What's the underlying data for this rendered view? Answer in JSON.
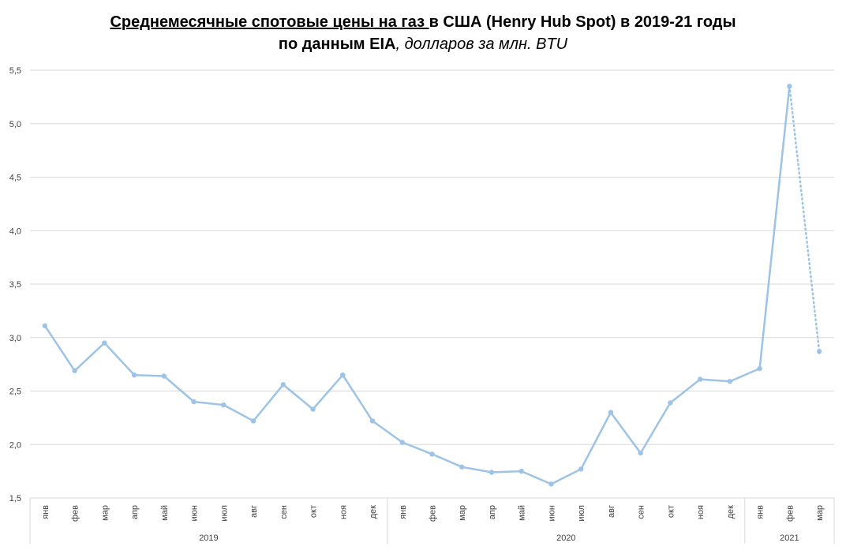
{
  "title": {
    "line1_underlined": "Среднемесячные спотовые цены на газ ",
    "line1_rest": "в США (Henry Hub Spot) в 2019-21 годы",
    "line2_bold": "по данным EIA",
    "line2_italic": ", долларов за млн. BTU"
  },
  "chart_data": {
    "type": "line",
    "title": "Среднемесячные спотовые цены на газ в США (Henry Hub Spot) в 2019-21 годы по данным EIA, долларов за млн. BTU",
    "ylim": [
      1.5,
      5.5
    ],
    "yticks": [
      "1,5",
      "2,0",
      "2,5",
      "3,0",
      "3,5",
      "4,0",
      "4,5",
      "5,0",
      "5,5"
    ],
    "ytick_values": [
      1.5,
      2.0,
      2.5,
      3.0,
      3.5,
      4.0,
      4.5,
      5.0,
      5.5
    ],
    "grid": true,
    "categories": [
      "янв",
      "фев",
      "мар",
      "апр",
      "май",
      "июн",
      "июл",
      "авг",
      "сен",
      "окт",
      "ноя",
      "дек",
      "янв",
      "фев",
      "мар",
      "апр",
      "май",
      "июн",
      "июл",
      "авг",
      "сен",
      "окт",
      "ноя",
      "дек",
      "янв",
      "фев",
      "мар"
    ],
    "year_groups": [
      {
        "label": "2019",
        "count": 12
      },
      {
        "label": "2020",
        "count": 12
      },
      {
        "label": "2021",
        "count": 3
      }
    ],
    "series": [
      {
        "values": [
          3.11,
          2.69,
          2.95,
          2.65,
          2.64,
          2.4,
          2.37,
          2.22,
          2.56,
          2.33,
          2.65,
          2.22,
          2.02,
          1.91,
          1.79,
          1.74,
          1.75,
          1.63,
          1.77,
          2.3,
          1.92,
          2.39,
          2.61,
          2.59,
          2.71,
          5.35,
          2.87
        ],
        "dotted_last_segment": true
      }
    ],
    "line_color": "#9DC3E6",
    "grid_color": "#D9D9D9"
  }
}
